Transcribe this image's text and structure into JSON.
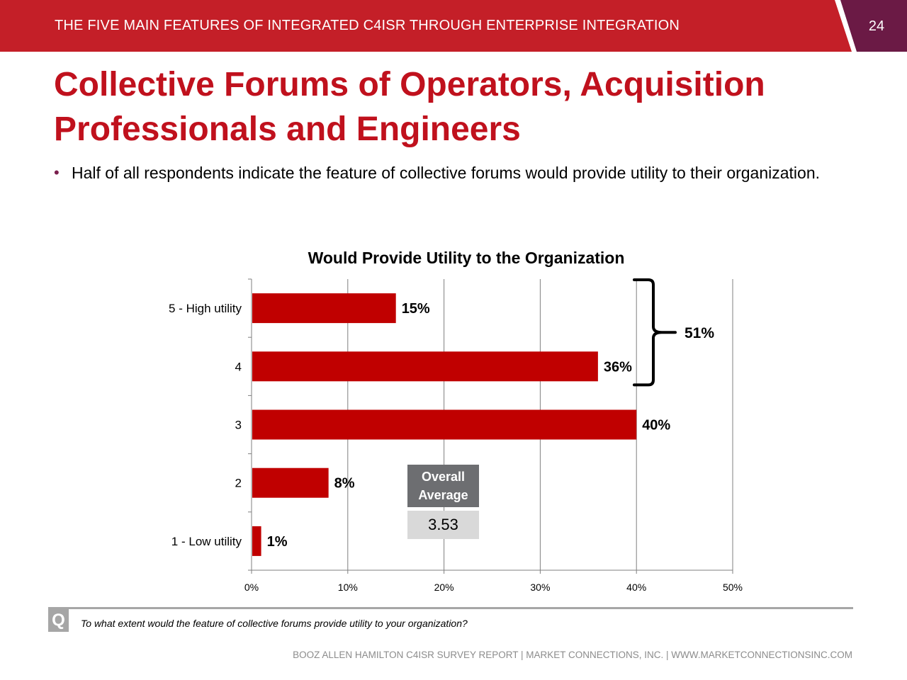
{
  "header": {
    "title": "THE FIVE MAIN FEATURES OF INTEGRATED C4ISR THROUGH ENTERPRISE INTEGRATION",
    "page_number": "24",
    "colors": {
      "band": "#c41f28",
      "corner": "#6b1a45"
    }
  },
  "slide": {
    "title": "Collective Forums of Operators, Acquisition Professionals and Engineers",
    "bullet": "Half of all respondents indicate the feature of collective forums would provide utility to their organization."
  },
  "chart_data": {
    "type": "bar",
    "orientation": "horizontal",
    "title": "Would Provide Utility to the Organization",
    "categories": [
      "5 - High utility",
      "4",
      "3",
      "2",
      "1 - Low utility"
    ],
    "values": [
      15,
      36,
      40,
      8,
      1
    ],
    "value_labels": [
      "15%",
      "36%",
      "40%",
      "8%",
      "1%"
    ],
    "x_ticks": [
      "0%",
      "10%",
      "20%",
      "30%",
      "40%",
      "50%"
    ],
    "xlim": [
      0,
      50
    ],
    "grid": "vertical",
    "bar_color": "#c00000",
    "bracket_label": "51%",
    "average": {
      "label_line1": "Overall",
      "label_line2": "Average",
      "value": "3.53"
    }
  },
  "question": {
    "badge": "Q",
    "text": "To what extent would the feature of collective forums provide utility to your organization?"
  },
  "footer": {
    "text": "BOOZ ALLEN HAMILTON C4ISR SURVEY REPORT   |   MARKET CONNECTIONS, INC.  |  WWW.MARKETCONNECTIONSINC.COM"
  }
}
